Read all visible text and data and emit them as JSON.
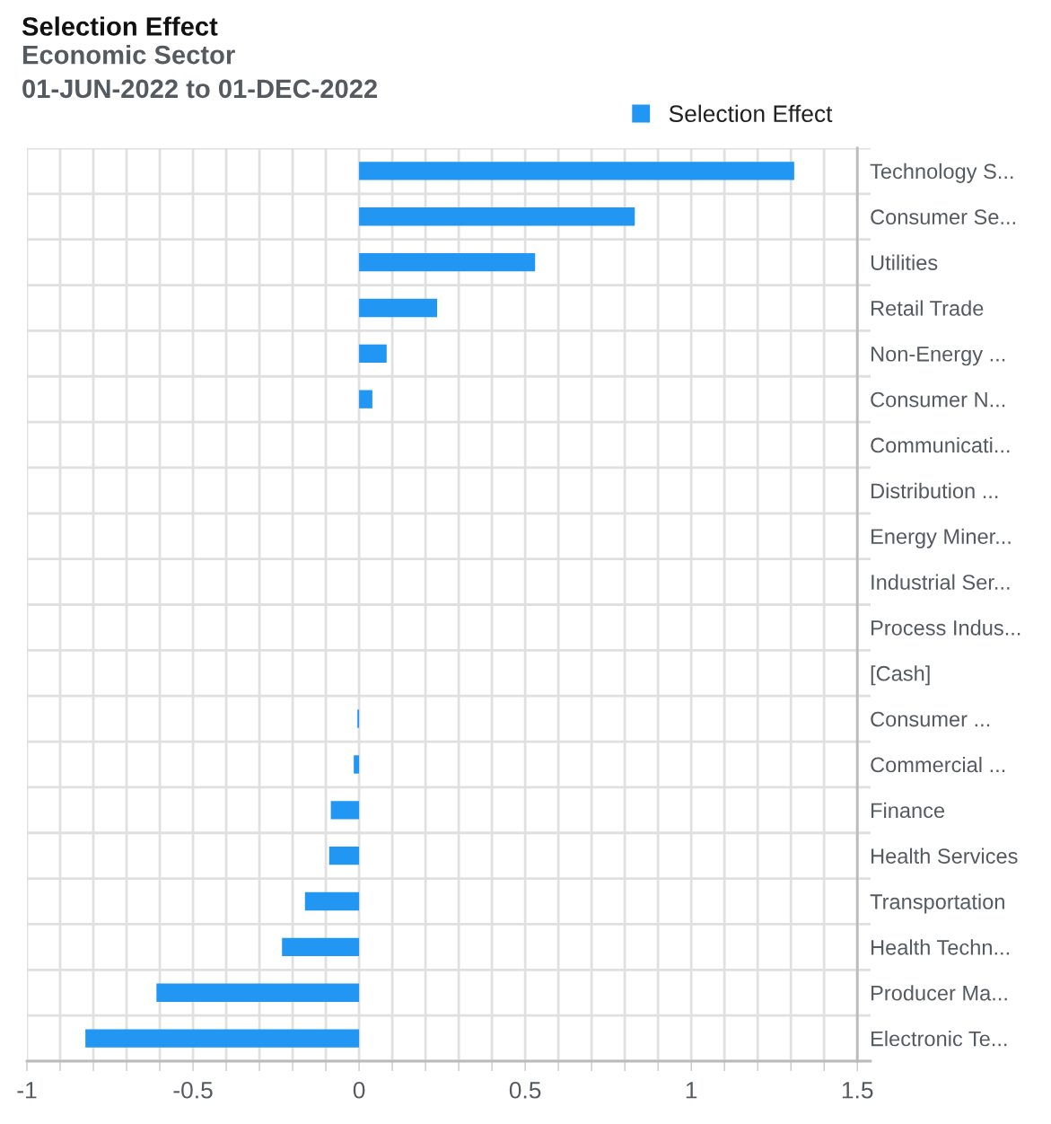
{
  "chart_data": {
    "type": "bar",
    "orientation": "horizontal",
    "title": "Selection Effect",
    "subtitle": "Economic Sector\n01-JUN-2022 to 01-DEC-2022",
    "categories": [
      "Technology S...",
      "Consumer Se...",
      "Utilities",
      "Retail Trade",
      "Non-Energy ...",
      "Consumer N...",
      "Communicati...",
      "Distribution ...",
      "Energy Miner...",
      "Industrial Ser...",
      "Process Indus...",
      "[Cash]",
      "Consumer ...",
      "Commercial ...",
      "Finance",
      "Health Services",
      "Transportation",
      "Health Techn...",
      "Producer Ma...",
      "Electronic Te..."
    ],
    "series": [
      {
        "name": "Selection Effect",
        "color": "#2196f3",
        "values": [
          1.31,
          0.83,
          0.53,
          0.235,
          0.083,
          0.04,
          0,
          0,
          0,
          0,
          0,
          0,
          -0.005,
          -0.016,
          -0.085,
          -0.09,
          -0.163,
          -0.232,
          -0.61,
          -0.824
        ]
      }
    ],
    "xlim": [
      -1,
      1.54
    ],
    "xticks": [
      -1,
      {
        "value": -0.9,
        "label": null
      },
      {
        "value": -0.8,
        "label": null
      },
      {
        "value": -0.7,
        "label": null
      },
      {
        "value": -0.6,
        "label": null
      },
      -0.5,
      {
        "value": -0.4,
        "label": null
      },
      {
        "value": -0.3,
        "label": null
      },
      {
        "value": -0.2,
        "label": null
      },
      {
        "value": -0.1,
        "label": null
      },
      0,
      {
        "value": 0.1,
        "label": null
      },
      {
        "value": 0.2,
        "label": null
      },
      {
        "value": 0.3,
        "label": null
      },
      {
        "value": 0.4,
        "label": null
      },
      0.5,
      {
        "value": 0.6,
        "label": null
      },
      {
        "value": 0.7,
        "label": null
      },
      {
        "value": 0.8,
        "label": null
      },
      {
        "value": 0.9,
        "label": null
      },
      1,
      {
        "value": 1.1,
        "label": null
      },
      {
        "value": 1.2,
        "label": null
      },
      {
        "value": 1.3,
        "label": null
      },
      {
        "value": 1.4,
        "label": null
      },
      1.5
    ],
    "grid": true,
    "legend": "top right"
  }
}
